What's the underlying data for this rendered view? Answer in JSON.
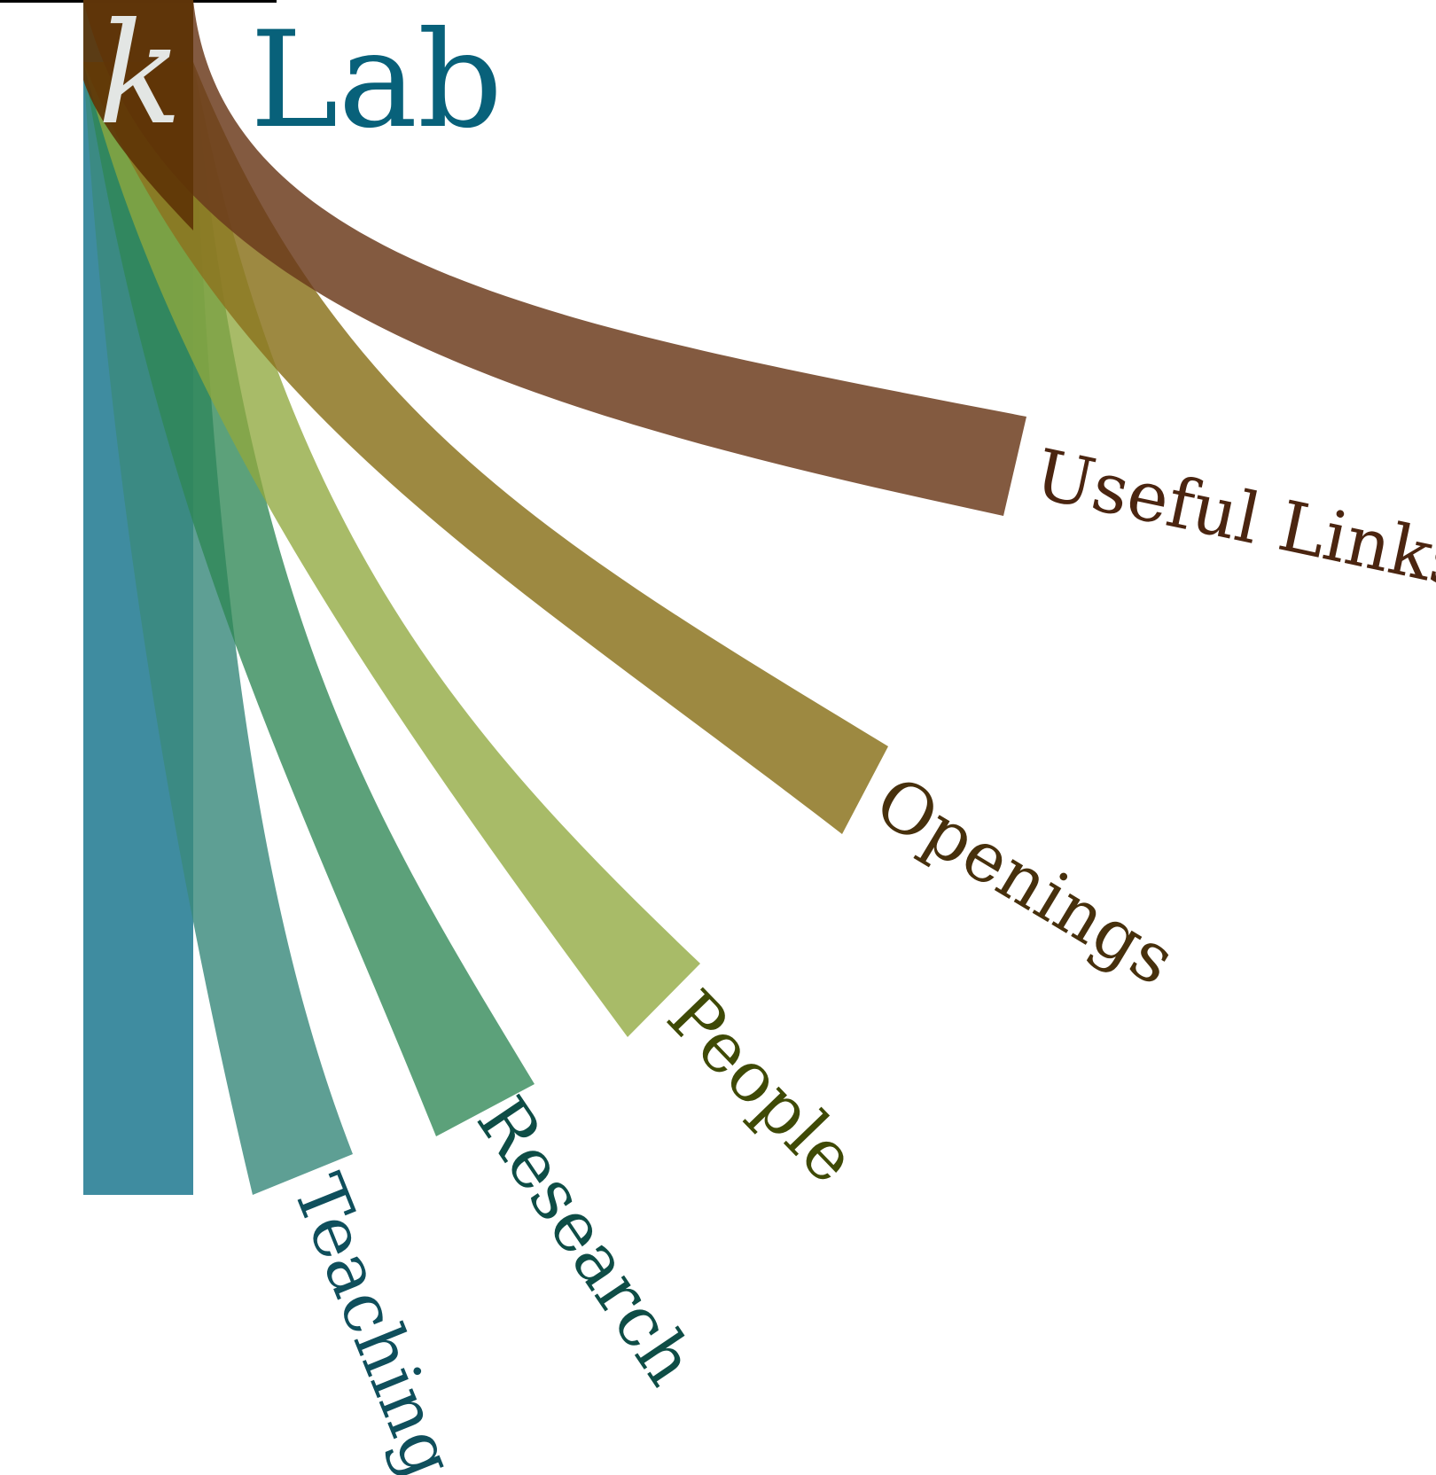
{
  "logo": {
    "mark": "k",
    "text": "Lab",
    "text_color": "#08617a",
    "mark_color": "#e3e6e4"
  },
  "colors": {
    "teaching": "#2a7f96",
    "teaching_dark": "#1f6d6a",
    "research": "#3d8f78",
    "people": "#8fa83e",
    "openings": "#8c7420",
    "useful_links": "#6b3a1c",
    "trunk_top": "#5e3306"
  },
  "nav": [
    {
      "id": "teaching",
      "label": "Teaching",
      "color": "#0f4f5c"
    },
    {
      "id": "research",
      "label": "Research",
      "color": "#0e4d46"
    },
    {
      "id": "people",
      "label": "People",
      "color": "#3f4a06"
    },
    {
      "id": "openings",
      "label": "Openings",
      "color": "#47300c"
    },
    {
      "id": "useful_links",
      "label": "Useful Links",
      "color": "#4b2510"
    }
  ]
}
